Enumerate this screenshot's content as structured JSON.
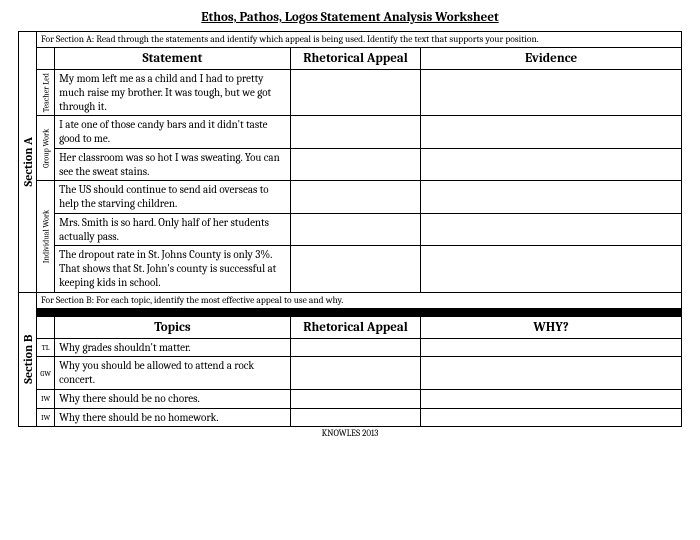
{
  "title": "Ethos, Pathos, Logos Statement Analysis Worksheet",
  "sectionA": {
    "label": "Section A",
    "instruction": "For Section A: Read through the statements and identify which appeal is being used. Identify the text that supports your position.",
    "headers": {
      "c1": "Statement",
      "c2": "Rhetorical Appeal",
      "c3": "Evidence"
    },
    "groups": {
      "teacher_led": "Teacher Led",
      "group_work": "Group Work",
      "individual_work": "Individual Work"
    },
    "rows": [
      "My mom left me as a child and I had to pretty much raise my brother. It was tough, but we got through it.",
      "I ate one of those candy bars and it didn't taste good to me.",
      "Her classroom was so hot I was sweating. You can see the sweat stains.",
      "The US should continue to send aid overseas to help the starving children.",
      "Mrs. Smith is so hard. Only half of her students actually pass.",
      "The dropout rate in St. Johns County is only 3%. That shows that St. John's county is successful at keeping kids in school."
    ]
  },
  "sectionB": {
    "label": "Section B",
    "instruction": "For Section B: For each topic, identify the most effective appeal to use and why.",
    "headers": {
      "c1": "Topics",
      "c2": "Rhetorical Appeal",
      "c3": "WHY?"
    },
    "abbrev": {
      "tl": "TL",
      "gw": "GW",
      "iw": "IW"
    },
    "rows": [
      "Why grades shouldn't matter.",
      "Why you should be allowed to attend a rock concert.",
      "Why there should be no chores.",
      "Why there should be no homework."
    ]
  },
  "footer": "KNOWLES 2013",
  "layout": {
    "col_section_w": 18,
    "col_label_w": 18,
    "col_statement_w": 235,
    "col_appeal_w": 130,
    "col_evidence_w": 260
  }
}
